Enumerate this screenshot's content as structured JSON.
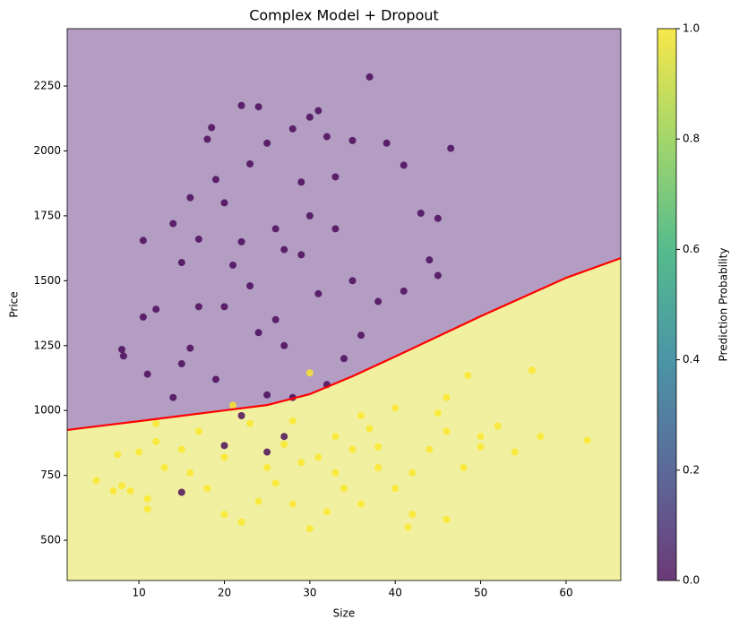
{
  "chart_data": {
    "type": "scatter",
    "title": "Complex Model + Dropout",
    "xlabel": "Size",
    "ylabel": "Price",
    "xlim": [
      1.6,
      66.4
    ],
    "ylim": [
      345,
      2471
    ],
    "xticks": [
      10,
      20,
      30,
      40,
      50,
      60
    ],
    "yticks": [
      500,
      750,
      1000,
      1250,
      1500,
      1750,
      2000,
      2250
    ],
    "region_colors": [
      "#b39dc3",
      "#f0f0a0"
    ],
    "series": [
      {
        "color": "#440154",
        "x": [
          10.5,
          8,
          8.2,
          10.5,
          11,
          12,
          14,
          15,
          16,
          17,
          18,
          18.5,
          19,
          20,
          21,
          22,
          23,
          24,
          25,
          26,
          27,
          28,
          29,
          30,
          31,
          32,
          33,
          35,
          37,
          39,
          41,
          43,
          45,
          46.5,
          44,
          45,
          41,
          36,
          34,
          32,
          28,
          25,
          22,
          19,
          16,
          14,
          20,
          23,
          26,
          29,
          31,
          27,
          24,
          33,
          30,
          22,
          38,
          35,
          17,
          15,
          27,
          25,
          20,
          15
        ],
        "values": [
          1655,
          1235,
          1210,
          1360,
          1140,
          1390,
          1720,
          1570,
          1820,
          1660,
          2045,
          2090,
          1890,
          1800,
          1560,
          2175,
          1950,
          2170,
          2030,
          1700,
          1620,
          2085,
          1880,
          2130,
          2155,
          2055,
          1900,
          2040,
          2285,
          2030,
          1945,
          1760,
          1740,
          2010,
          1580,
          1520,
          1460,
          1290,
          1200,
          1100,
          1050,
          1060,
          980,
          1120,
          1240,
          1050,
          1400,
          1480,
          1350,
          1600,
          1450,
          1250,
          1300,
          1700,
          1750,
          1650,
          1420,
          1500,
          1400,
          1180,
          900,
          840,
          865,
          685
        ]
      },
      {
        "color": "#fde725",
        "x": [
          5,
          7,
          8,
          9,
          7.5,
          11,
          11,
          12,
          13,
          15,
          16,
          18,
          20,
          22,
          24,
          26,
          28,
          30,
          32,
          34,
          36,
          38,
          40,
          41.5,
          42,
          46,
          44,
          46,
          48,
          50,
          52,
          54,
          57,
          56,
          62.5,
          48.5,
          46,
          40,
          36,
          30,
          33,
          31,
          35,
          29,
          27,
          25,
          23,
          20,
          38,
          42,
          17,
          12,
          10,
          45,
          33,
          28,
          37,
          21,
          50
        ],
        "values": [
          730,
          690,
          710,
          690,
          830,
          660,
          620,
          880,
          780,
          850,
          760,
          700,
          600,
          570,
          650,
          720,
          640,
          545,
          610,
          700,
          640,
          780,
          700,
          550,
          600,
          580,
          850,
          920,
          780,
          900,
          940,
          840,
          900,
          1155,
          885,
          1135,
          1050,
          1010,
          980,
          1145,
          900,
          820,
          850,
          800,
          870,
          780,
          950,
          820,
          860,
          760,
          920,
          950,
          840,
          990,
          760,
          960,
          930,
          1020,
          860
        ]
      }
    ],
    "boundary": {
      "color": "#ff0000",
      "x": [
        1.6,
        10,
        25,
        30,
        35,
        40,
        50,
        60,
        66.4
      ],
      "values": [
        925,
        959,
        1021,
        1063,
        1132,
        1208,
        1363,
        1511,
        1587
      ]
    },
    "colorbar": {
      "label": "Prediction Probability",
      "lim": [
        0,
        1
      ],
      "ticks": [
        {
          "value": 0,
          "label": "0.0"
        },
        0.2,
        0.4,
        0.6,
        0.8,
        {
          "value": 1,
          "label": "1.0"
        }
      ],
      "colors": [
        "#6b3a77",
        "#5c6a9a",
        "#4a95a6",
        "#55bc8d",
        "#a3d66b",
        "#f7e84a"
      ]
    }
  }
}
